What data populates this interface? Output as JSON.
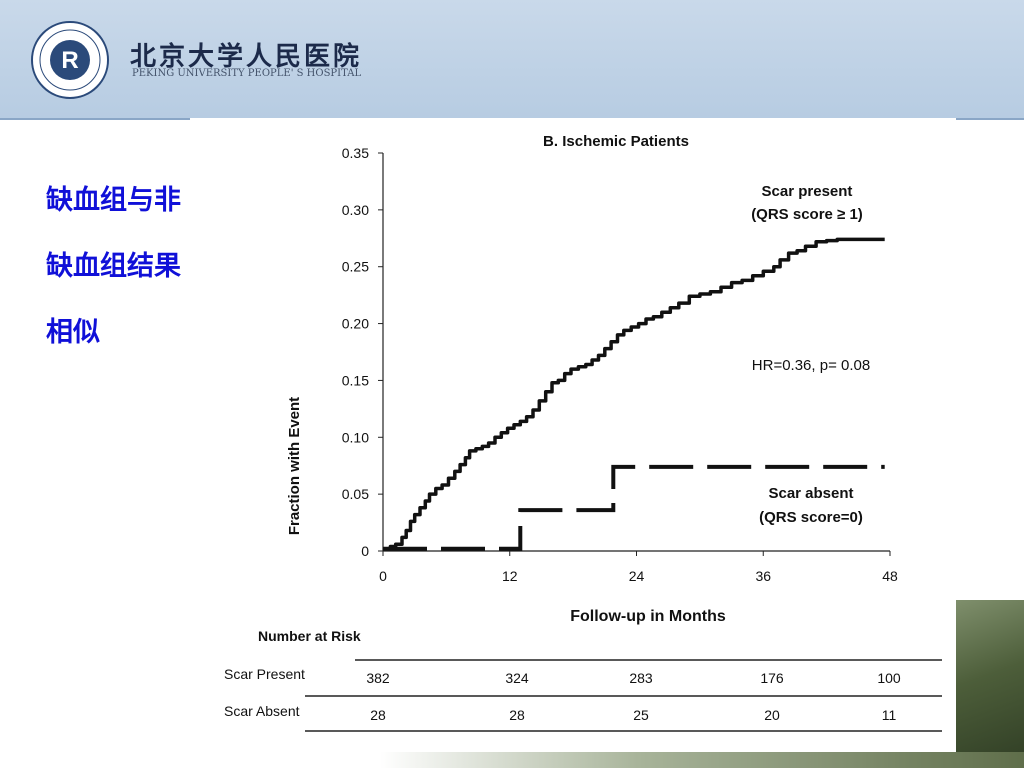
{
  "header": {
    "hospital_cn": "北京大学人民医院",
    "hospital_en": "PEKING UNIVERSITY PEOPLE' S HOSPITAL",
    "bg_color": "#b7cce2"
  },
  "sidebar": {
    "lines": [
      "缺血组与非",
      "缺血组结果",
      "相似"
    ],
    "color": "#1010d8"
  },
  "chart_data": {
    "type": "line",
    "title": "B. Ischemic Patients",
    "xlabel": "Follow-up in Months",
    "ylabel": "Fraction with Event",
    "xlim": [
      0,
      48
    ],
    "ylim": [
      0,
      0.35
    ],
    "x_ticks": [
      "0",
      "12",
      "24",
      "36",
      "48"
    ],
    "y_ticks": [
      "0",
      "0.05",
      "0.10",
      "0.15",
      "0.20",
      "0.25",
      "0.30",
      "0.35"
    ],
    "grid": false,
    "series": [
      {
        "name": "Scar present",
        "name_line2": "(QRS score ≥  1)",
        "style": "solid",
        "x": [
          0,
          0.7,
          1.2,
          1.8,
          2.2,
          2.6,
          3.0,
          3.5,
          4.0,
          4.4,
          5.0,
          5.6,
          6.2,
          6.8,
          7.3,
          7.8,
          8.2,
          8.8,
          9.4,
          10.0,
          10.6,
          11.2,
          11.8,
          12.4,
          13.0,
          13.6,
          14.2,
          14.8,
          15.4,
          16.0,
          16.6,
          17.2,
          17.8,
          18.5,
          19.2,
          19.8,
          20.4,
          21.0,
          21.6,
          22.2,
          22.8,
          23.5,
          24.2,
          24.9,
          25.6,
          26.4,
          27.2,
          28.0,
          29.0,
          30.0,
          31.0,
          32.0,
          33.0,
          34.0,
          35.0,
          36.0,
          37.0,
          37.6,
          38.4,
          39.2,
          40.0,
          41.0,
          42.0,
          43.0,
          44.0,
          45.0,
          46.0,
          47.5
        ],
        "y": [
          0.002,
          0.004,
          0.006,
          0.012,
          0.018,
          0.026,
          0.032,
          0.038,
          0.044,
          0.05,
          0.055,
          0.058,
          0.064,
          0.07,
          0.076,
          0.082,
          0.088,
          0.09,
          0.092,
          0.095,
          0.1,
          0.104,
          0.108,
          0.111,
          0.114,
          0.118,
          0.124,
          0.132,
          0.14,
          0.148,
          0.15,
          0.156,
          0.16,
          0.162,
          0.164,
          0.168,
          0.172,
          0.178,
          0.184,
          0.19,
          0.194,
          0.197,
          0.2,
          0.204,
          0.206,
          0.21,
          0.214,
          0.218,
          0.224,
          0.226,
          0.228,
          0.232,
          0.236,
          0.238,
          0.242,
          0.246,
          0.25,
          0.256,
          0.262,
          0.264,
          0.268,
          0.272,
          0.273,
          0.274,
          0.274,
          0.274,
          0.274,
          0.274
        ]
      },
      {
        "name": "Scar absent",
        "name_line2": "(QRS score=0)",
        "style": "dashed",
        "x": [
          0,
          13,
          13,
          21.8,
          21.8,
          47.5
        ],
        "y": [
          0.002,
          0.002,
          0.036,
          0.036,
          0.074,
          0.074
        ]
      }
    ],
    "annotation": "HR=0.36, p= 0.08",
    "risk_table": {
      "title": "Number at Risk",
      "rows": [
        {
          "label": "Scar Present",
          "values": [
            "382",
            "324",
            "283",
            "176",
            "100"
          ]
        },
        {
          "label": "Scar Absent",
          "values": [
            "28",
            "28",
            "25",
            "20",
            "11"
          ]
        }
      ]
    }
  }
}
